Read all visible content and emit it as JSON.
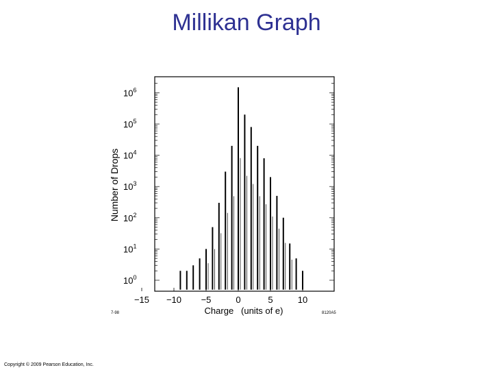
{
  "slide": {
    "title": "Millikan Graph",
    "copyright": "Copyright © 2009 Pearson Education, Inc."
  },
  "figure": {
    "corner_left": "7-98",
    "corner_right": "8120A5"
  },
  "chart_data": {
    "type": "bar",
    "title": "",
    "xlabel": "Charge   (units of e)",
    "ylabel": "Number of Drops",
    "yscale": "log",
    "xlim": [
      -15,
      15
    ],
    "ylim": [
      0.5,
      3000000
    ],
    "xticks": [
      -15,
      -10,
      -5,
      0,
      5,
      10
    ],
    "xtick_labels": [
      "−15",
      "−10",
      "−5",
      "0",
      "5",
      "10"
    ],
    "yticks": [
      1,
      10,
      100,
      1000,
      10000,
      100000,
      1000000
    ],
    "ytick_labels": [
      {
        "base": "10",
        "exp": "0"
      },
      {
        "base": "10",
        "exp": "1"
      },
      {
        "base": "10",
        "exp": "2"
      },
      {
        "base": "10",
        "exp": "3"
      },
      {
        "base": "10",
        "exp": "4"
      },
      {
        "base": "10",
        "exp": "5"
      },
      {
        "base": "10",
        "exp": "6"
      }
    ],
    "x": [
      -9,
      -8,
      -7,
      -6,
      -5,
      -4,
      -3,
      -2,
      -1,
      0,
      1,
      2,
      3,
      4,
      5,
      6,
      7,
      8,
      9,
      10
    ],
    "values": [
      2,
      2,
      3,
      5,
      10,
      50,
      300,
      3000,
      20000,
      1500000,
      200000,
      80000,
      20000,
      8000,
      2000,
      500,
      100,
      15,
      5,
      2
    ],
    "bar_color": "#000000"
  }
}
